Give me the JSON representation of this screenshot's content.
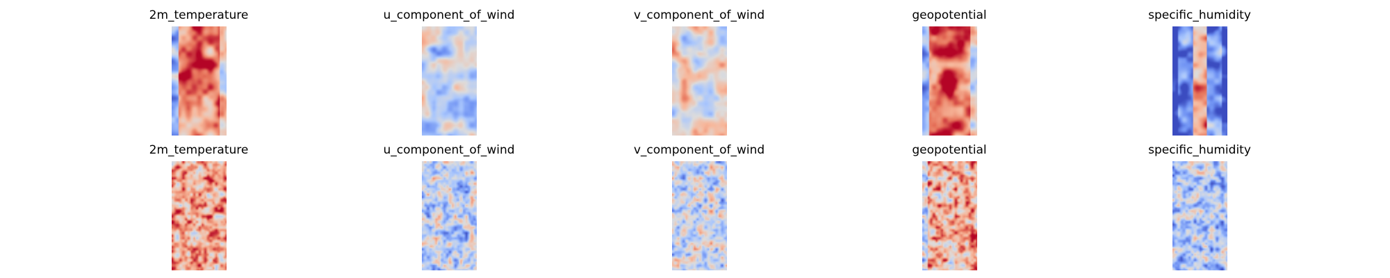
{
  "figure": {
    "rows": [
      {
        "panels": [
          {
            "title": "2m_temperature",
            "field": "2m_temperature"
          },
          {
            "title": "u_component_of_wind",
            "field": "u_component_of_wind"
          },
          {
            "title": "v_component_of_wind",
            "field": "v_component_of_wind"
          },
          {
            "title": "geopotential",
            "field": "geopotential"
          },
          {
            "title": "specific_humidity",
            "field": "specific_humidity"
          }
        ]
      },
      {
        "panels": [
          {
            "title": "2m_temperature",
            "field": "2m_temperature"
          },
          {
            "title": "u_component_of_wind",
            "field": "u_component_of_wind"
          },
          {
            "title": "v_component_of_wind",
            "field": "v_component_of_wind"
          },
          {
            "title": "geopotential",
            "field": "geopotential"
          },
          {
            "title": "specific_humidity",
            "field": "specific_humidity"
          }
        ]
      }
    ]
  },
  "chart_data": {
    "type": "heatmap",
    "colormap": "coolwarm",
    "colormap_stops": [
      "#3b4cc0",
      "#6f92f3",
      "#aac7fd",
      "#dddcdc",
      "#f7b89c",
      "#e7745b",
      "#b40426"
    ],
    "axes_visible": false,
    "grid": false,
    "legend": "none",
    "panels": [
      {
        "row": 0,
        "col": 0,
        "title": "2m_temperature",
        "mean_level": 0.75,
        "pattern": "warm center band, cool left edge",
        "smoothness": "smooth"
      },
      {
        "row": 0,
        "col": 1,
        "title": "u_component_of_wind",
        "mean_level": 0.42,
        "pattern": "mixed, mostly cool with warm streaks",
        "smoothness": "smooth"
      },
      {
        "row": 0,
        "col": 2,
        "title": "v_component_of_wind",
        "mean_level": 0.52,
        "pattern": "mixed warm and cool streaks",
        "smoothness": "smooth"
      },
      {
        "row": 0,
        "col": 3,
        "title": "geopotential",
        "mean_level": 0.78,
        "pattern": "warm center band, cool left edge",
        "smoothness": "smooth"
      },
      {
        "row": 0,
        "col": 4,
        "title": "specific_humidity",
        "mean_level": 0.3,
        "pattern": "cool edges, warm central column",
        "smoothness": "smooth"
      },
      {
        "row": 1,
        "col": 0,
        "title": "2m_temperature",
        "mean_level": 0.72,
        "pattern": "warm noisy field",
        "smoothness": "noisy"
      },
      {
        "row": 1,
        "col": 1,
        "title": "u_component_of_wind",
        "mean_level": 0.4,
        "pattern": "mostly cool noisy field with warm spots",
        "smoothness": "noisy"
      },
      {
        "row": 1,
        "col": 2,
        "title": "v_component_of_wind",
        "mean_level": 0.42,
        "pattern": "mostly cool noisy field with warm spots",
        "smoothness": "noisy"
      },
      {
        "row": 1,
        "col": 3,
        "title": "geopotential",
        "mean_level": 0.68,
        "pattern": "warm noisy field, cooler left edge",
        "smoothness": "noisy"
      },
      {
        "row": 1,
        "col": 4,
        "title": "specific_humidity",
        "mean_level": 0.36,
        "pattern": "light cool noisy field with warm spots",
        "smoothness": "noisy"
      }
    ]
  }
}
